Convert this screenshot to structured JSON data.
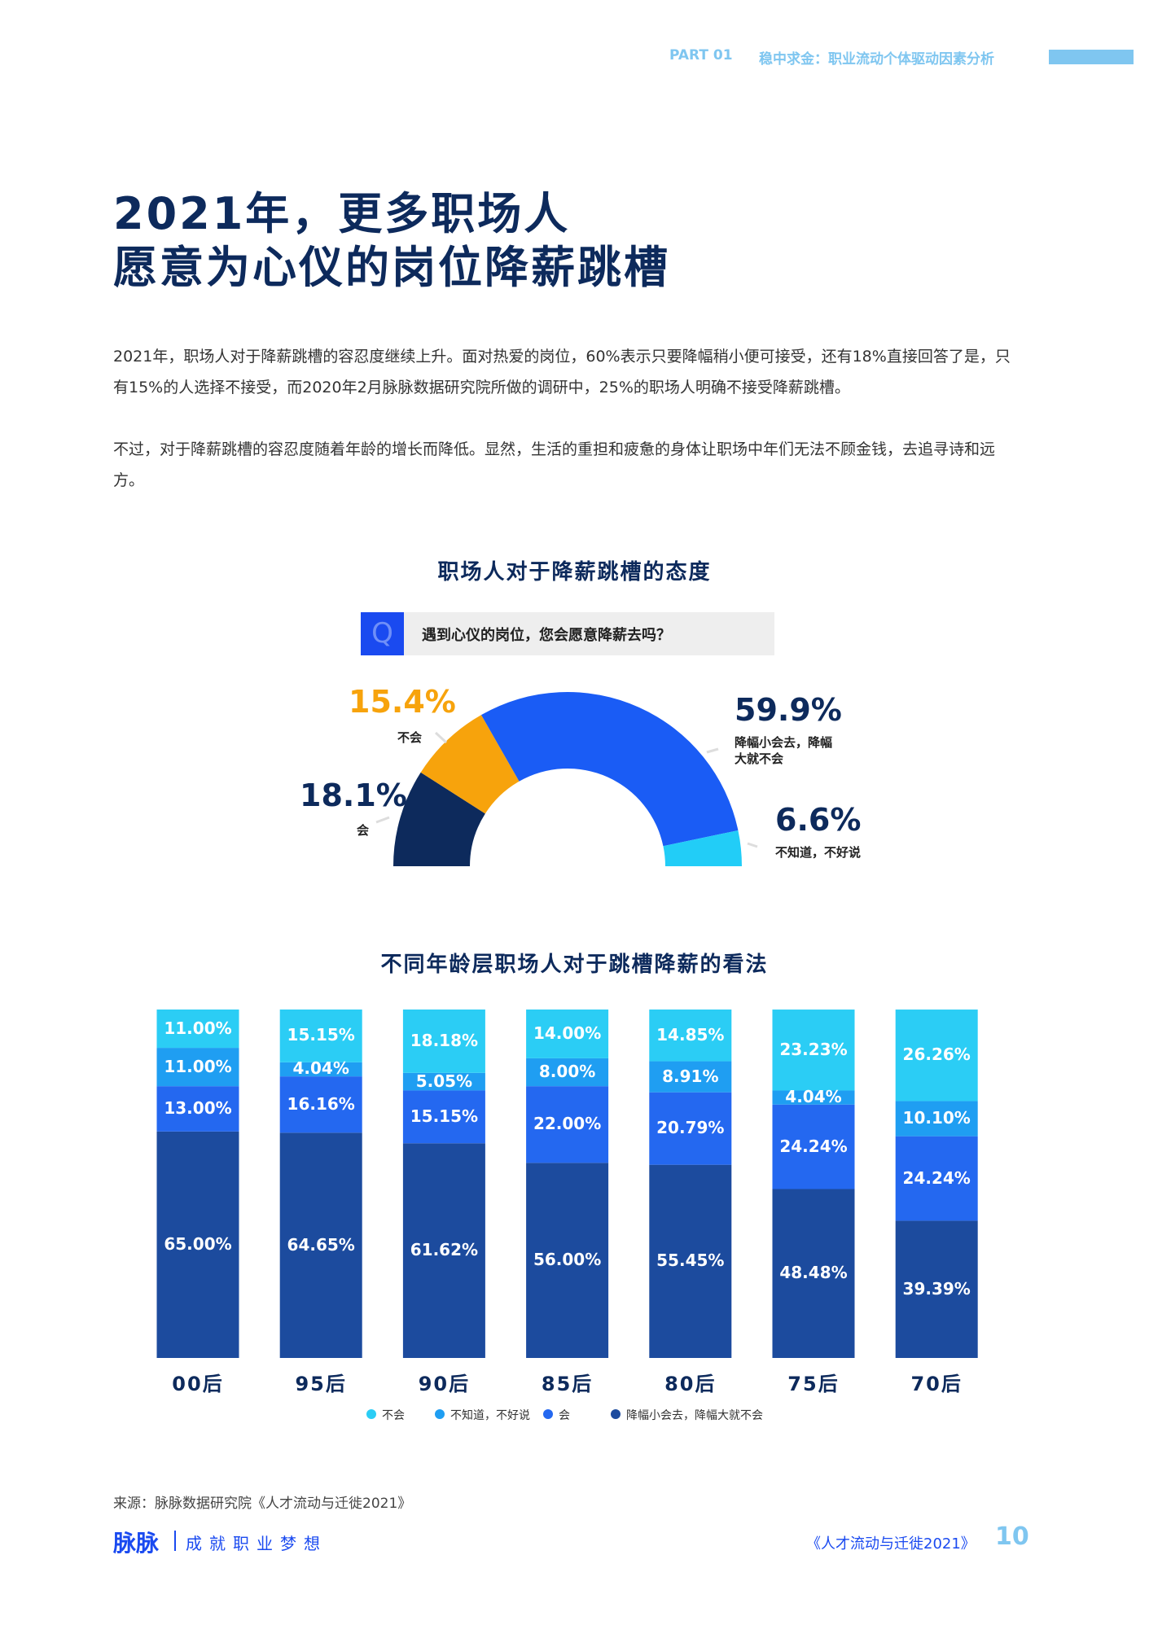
{
  "header": {
    "part": "PART 01",
    "section": "稳中求金：职业流动个体驱动因素分析"
  },
  "title": [
    "2021年，更多职场人",
    "愿意为心仪的岗位降薪跳槽"
  ],
  "paragraphs": [
    "2021年，职场人对于降薪跳槽的容忍度继续上升。面对热爱的岗位，60%表示只要降幅稍小便可接受，还有18%直接回答了是，只有15%的人选择不接受，而2020年2月脉脉数据研究院所做的调研中，25%的职场人明确不接受降薪跳槽。",
    "不过，对于降薪跳槽的容忍度随着年龄的增长而降低。显然，生活的重担和疲惫的身体让职场中年们无法不顾金钱，去追寻诗和远方。"
  ],
  "chart_data": [
    {
      "type": "pie",
      "title": "职场人对于降薪跳槽的态度",
      "question_icon": "Q",
      "question": "遇到心仪的岗位，您会愿意降薪去吗？",
      "categories": [
        "会",
        "不会",
        "降幅小会去，降幅大就不会",
        "不知道，不好说"
      ],
      "values": [
        18.1,
        15.4,
        59.9,
        6.6
      ],
      "value_labels": [
        "18.1%",
        "15.4%",
        "59.9%",
        "6.6%"
      ],
      "colors": [
        "#0d2a5c",
        "#f7a30c",
        "#1a5cf5",
        "#22cdf7"
      ],
      "label_colors": [
        "#0d2a5c",
        "#f7a30c",
        "#0d2a5c",
        "#0d2a5c"
      ]
    },
    {
      "type": "stacked-bar",
      "title": "不同年龄层职场人对于跳槽降薪的看法",
      "categories": [
        "00后",
        "95后",
        "90后",
        "85后",
        "80后",
        "75后",
        "70后"
      ],
      "ylim": [
        0,
        100
      ],
      "series": [
        {
          "name": "不会",
          "color": "#2bcdf5",
          "values": [
            11.0,
            15.15,
            18.18,
            14.0,
            14.85,
            23.23,
            26.26
          ],
          "value_labels": [
            "11.00%",
            "15.15%",
            "18.18%",
            "14.00%",
            "14.85%",
            "23.23%",
            "26.26%"
          ]
        },
        {
          "name": "不知道，不好说",
          "color": "#1f9ef2",
          "values": [
            11.0,
            4.04,
            5.05,
            8.0,
            8.91,
            4.04,
            10.1
          ],
          "value_labels": [
            "11.00%",
            "4.04%",
            "5.05%",
            "8.00%",
            "8.91%",
            "4.04%",
            "10.10%"
          ]
        },
        {
          "name": "会",
          "color": "#2468f0",
          "values": [
            13.0,
            16.16,
            15.15,
            22.0,
            20.79,
            24.24,
            24.24
          ],
          "value_labels": [
            "13.00%",
            "16.16%",
            "15.15%",
            "22.00%",
            "20.79%",
            "24.24%",
            "24.24%"
          ]
        },
        {
          "name": "降幅小会去，降幅大就不会",
          "color": "#1c4b9e",
          "values": [
            65.0,
            64.65,
            61.62,
            56.0,
            55.45,
            48.48,
            39.39
          ],
          "value_labels": [
            "65.00%",
            "64.65%",
            "61.62%",
            "56.00%",
            "55.45%",
            "48.48%",
            "39.39%"
          ]
        }
      ]
    }
  ],
  "footer": {
    "source": "来源：脉脉数据研究院《人才流动与迁徙2021》",
    "brand": "脉脉",
    "slogan": "成就职业梦想",
    "report": "《人才流动与迁徙2021》",
    "page": "10"
  }
}
